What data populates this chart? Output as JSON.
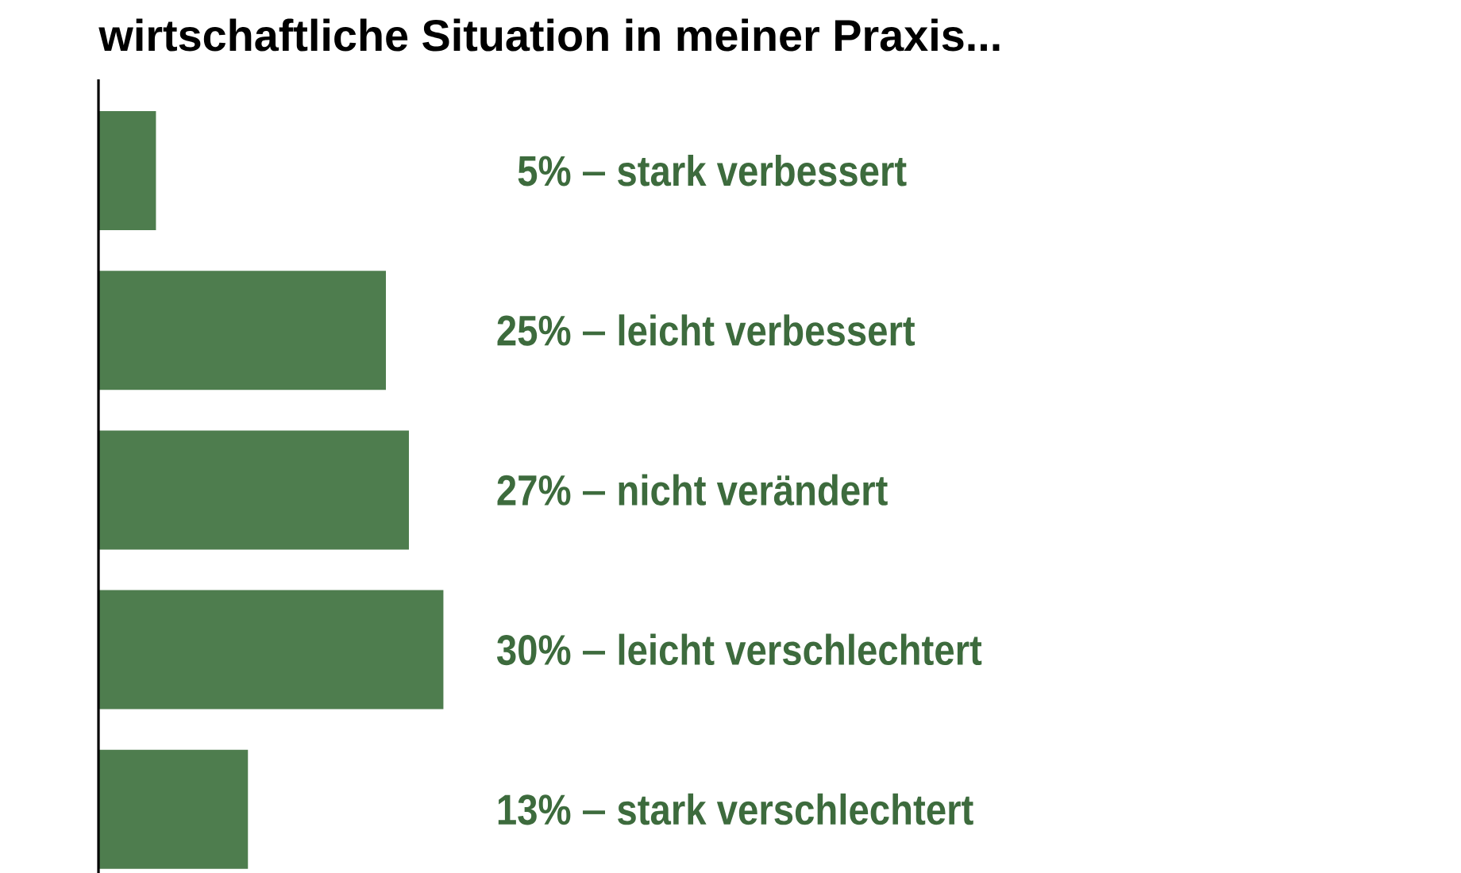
{
  "chart_data": {
    "type": "bar",
    "orientation": "horizontal",
    "title": "wirtschaftliche Situation in meiner Praxis...",
    "categories": [
      "stark verbessert",
      "leicht verbessert",
      "nicht verändert",
      "leicht verschlechtert",
      "stark verschlechtert"
    ],
    "values": [
      5,
      25,
      27,
      30,
      13
    ],
    "value_labels": [
      "5%",
      "25%",
      "27%",
      "30%",
      "13%"
    ],
    "color": "#4e7d4e"
  }
}
